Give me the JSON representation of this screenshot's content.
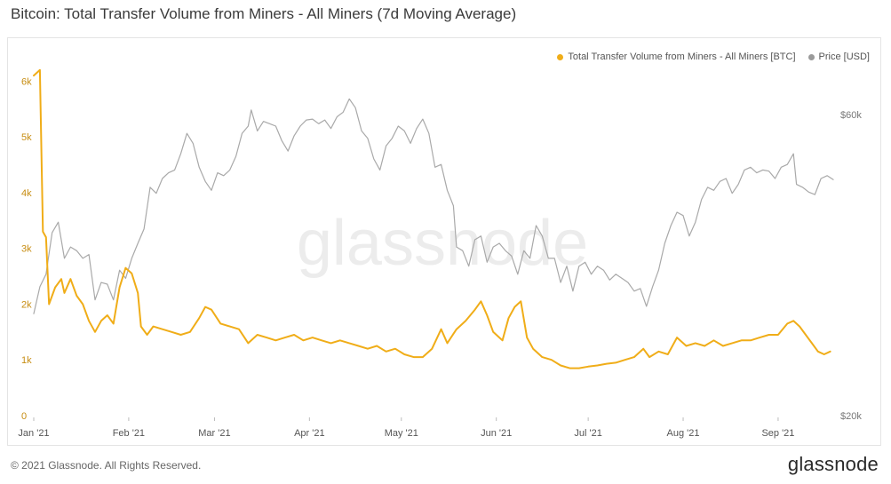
{
  "title": "Bitcoin: Total Transfer Volume from Miners - All Miners (7d Moving Average)",
  "footer": {
    "copyright": "© 2021 Glassnode. All Rights Reserved.",
    "logo": "glassnode"
  },
  "watermark": "glassnode",
  "colors": {
    "volume": "#f0ad18",
    "price": "#a9a9a9",
    "axis_left": "#c78d12",
    "axis_right": "#777777",
    "watermark": "#ececec"
  },
  "chart_data": {
    "type": "line",
    "x_range": [
      "2021-01-01",
      "2021-09-19"
    ],
    "x_ticks": [
      {
        "date": "2021-01-01",
        "label": "Jan '21"
      },
      {
        "date": "2021-02-01",
        "label": "Feb '21"
      },
      {
        "date": "2021-03-01",
        "label": "Mar '21"
      },
      {
        "date": "2021-04-01",
        "label": "Apr '21"
      },
      {
        "date": "2021-05-01",
        "label": "May '21"
      },
      {
        "date": "2021-06-01",
        "label": "Jun '21"
      },
      {
        "date": "2021-07-01",
        "label": "Jul '21"
      },
      {
        "date": "2021-08-01",
        "label": "Aug '21"
      },
      {
        "date": "2021-09-01",
        "label": "Sep '21"
      }
    ],
    "y_left": {
      "range": [
        0,
        6500
      ],
      "ticks": [
        {
          "value": 0,
          "label": "0"
        },
        {
          "value": 1000,
          "label": "1k"
        },
        {
          "value": 2000,
          "label": "2k"
        },
        {
          "value": 3000,
          "label": "3k"
        },
        {
          "value": 4000,
          "label": "4k"
        },
        {
          "value": 5000,
          "label": "5k"
        },
        {
          "value": 6000,
          "label": "6k"
        }
      ]
    },
    "y_right": {
      "scale": "log",
      "range": [
        20000,
        75000
      ],
      "ticks": [
        {
          "value": 20000,
          "label": "$20k"
        },
        {
          "value": 60000,
          "label": "$60k"
        }
      ]
    },
    "legend_position": "top-right",
    "series": [
      {
        "name": "Total Transfer Volume from Miners - All Miners [BTC]",
        "axis": "left",
        "points": [
          [
            "2021-01-01",
            6100
          ],
          [
            "2021-01-02",
            6150
          ],
          [
            "2021-01-03",
            6200
          ],
          [
            "2021-01-04",
            3300
          ],
          [
            "2021-01-05",
            3200
          ],
          [
            "2021-01-06",
            2000
          ],
          [
            "2021-01-08",
            2300
          ],
          [
            "2021-01-10",
            2450
          ],
          [
            "2021-01-11",
            2200
          ],
          [
            "2021-01-13",
            2450
          ],
          [
            "2021-01-15",
            2150
          ],
          [
            "2021-01-17",
            2000
          ],
          [
            "2021-01-19",
            1700
          ],
          [
            "2021-01-21",
            1500
          ],
          [
            "2021-01-23",
            1700
          ],
          [
            "2021-01-25",
            1800
          ],
          [
            "2021-01-27",
            1650
          ],
          [
            "2021-01-29",
            2300
          ],
          [
            "2021-01-31",
            2650
          ],
          [
            "2021-02-02",
            2550
          ],
          [
            "2021-02-04",
            2200
          ],
          [
            "2021-02-05",
            1600
          ],
          [
            "2021-02-07",
            1450
          ],
          [
            "2021-02-09",
            1600
          ],
          [
            "2021-02-12",
            1550
          ],
          [
            "2021-02-15",
            1500
          ],
          [
            "2021-02-18",
            1450
          ],
          [
            "2021-02-21",
            1500
          ],
          [
            "2021-02-24",
            1750
          ],
          [
            "2021-02-26",
            1950
          ],
          [
            "2021-02-28",
            1900
          ],
          [
            "2021-03-03",
            1650
          ],
          [
            "2021-03-06",
            1600
          ],
          [
            "2021-03-09",
            1550
          ],
          [
            "2021-03-12",
            1300
          ],
          [
            "2021-03-15",
            1450
          ],
          [
            "2021-03-18",
            1400
          ],
          [
            "2021-03-21",
            1350
          ],
          [
            "2021-03-24",
            1400
          ],
          [
            "2021-03-27",
            1450
          ],
          [
            "2021-03-30",
            1350
          ],
          [
            "2021-04-02",
            1400
          ],
          [
            "2021-04-05",
            1350
          ],
          [
            "2021-04-08",
            1300
          ],
          [
            "2021-04-11",
            1350
          ],
          [
            "2021-04-14",
            1300
          ],
          [
            "2021-04-17",
            1250
          ],
          [
            "2021-04-20",
            1200
          ],
          [
            "2021-04-23",
            1250
          ],
          [
            "2021-04-26",
            1150
          ],
          [
            "2021-04-29",
            1200
          ],
          [
            "2021-05-02",
            1100
          ],
          [
            "2021-05-05",
            1050
          ],
          [
            "2021-05-08",
            1050
          ],
          [
            "2021-05-11",
            1200
          ],
          [
            "2021-05-14",
            1550
          ],
          [
            "2021-05-16",
            1300
          ],
          [
            "2021-05-19",
            1550
          ],
          [
            "2021-05-22",
            1700
          ],
          [
            "2021-05-25",
            1900
          ],
          [
            "2021-05-27",
            2050
          ],
          [
            "2021-05-29",
            1800
          ],
          [
            "2021-05-31",
            1500
          ],
          [
            "2021-06-03",
            1350
          ],
          [
            "2021-06-05",
            1750
          ],
          [
            "2021-06-07",
            1950
          ],
          [
            "2021-06-09",
            2050
          ],
          [
            "2021-06-11",
            1400
          ],
          [
            "2021-06-13",
            1200
          ],
          [
            "2021-06-16",
            1050
          ],
          [
            "2021-06-19",
            1000
          ],
          [
            "2021-06-22",
            900
          ],
          [
            "2021-06-25",
            850
          ],
          [
            "2021-06-28",
            850
          ],
          [
            "2021-07-01",
            880
          ],
          [
            "2021-07-04",
            900
          ],
          [
            "2021-07-07",
            930
          ],
          [
            "2021-07-10",
            950
          ],
          [
            "2021-07-13",
            1000
          ],
          [
            "2021-07-16",
            1050
          ],
          [
            "2021-07-19",
            1200
          ],
          [
            "2021-07-21",
            1050
          ],
          [
            "2021-07-24",
            1150
          ],
          [
            "2021-07-27",
            1100
          ],
          [
            "2021-07-30",
            1400
          ],
          [
            "2021-08-02",
            1250
          ],
          [
            "2021-08-05",
            1300
          ],
          [
            "2021-08-08",
            1250
          ],
          [
            "2021-08-11",
            1350
          ],
          [
            "2021-08-14",
            1250
          ],
          [
            "2021-08-17",
            1300
          ],
          [
            "2021-08-20",
            1350
          ],
          [
            "2021-08-23",
            1350
          ],
          [
            "2021-08-26",
            1400
          ],
          [
            "2021-08-29",
            1450
          ],
          [
            "2021-09-01",
            1450
          ],
          [
            "2021-09-04",
            1650
          ],
          [
            "2021-09-06",
            1700
          ],
          [
            "2021-09-08",
            1600
          ],
          [
            "2021-09-10",
            1450
          ],
          [
            "2021-09-12",
            1300
          ],
          [
            "2021-09-14",
            1150
          ],
          [
            "2021-09-16",
            1100
          ],
          [
            "2021-09-18",
            1150
          ]
        ]
      },
      {
        "name": "Price [USD]",
        "axis": "right",
        "points": [
          [
            "2021-01-01",
            29000
          ],
          [
            "2021-01-03",
            32000
          ],
          [
            "2021-01-05",
            33500
          ],
          [
            "2021-01-07",
            39000
          ],
          [
            "2021-01-09",
            40500
          ],
          [
            "2021-01-11",
            35500
          ],
          [
            "2021-01-13",
            37000
          ],
          [
            "2021-01-15",
            36500
          ],
          [
            "2021-01-17",
            35500
          ],
          [
            "2021-01-19",
            36000
          ],
          [
            "2021-01-21",
            30500
          ],
          [
            "2021-01-23",
            32500
          ],
          [
            "2021-01-25",
            32300
          ],
          [
            "2021-01-27",
            30500
          ],
          [
            "2021-01-29",
            34000
          ],
          [
            "2021-01-31",
            33000
          ],
          [
            "2021-02-02",
            35500
          ],
          [
            "2021-02-04",
            37500
          ],
          [
            "2021-02-06",
            39500
          ],
          [
            "2021-02-08",
            46000
          ],
          [
            "2021-02-10",
            45000
          ],
          [
            "2021-02-12",
            47500
          ],
          [
            "2021-02-14",
            48500
          ],
          [
            "2021-02-16",
            49000
          ],
          [
            "2021-02-18",
            52000
          ],
          [
            "2021-02-20",
            56000
          ],
          [
            "2021-02-22",
            54000
          ],
          [
            "2021-02-24",
            49500
          ],
          [
            "2021-02-26",
            47000
          ],
          [
            "2021-02-28",
            45500
          ],
          [
            "2021-03-02",
            48500
          ],
          [
            "2021-03-04",
            48000
          ],
          [
            "2021-03-06",
            49000
          ],
          [
            "2021-03-08",
            51500
          ],
          [
            "2021-03-10",
            56000
          ],
          [
            "2021-03-12",
            57500
          ],
          [
            "2021-03-13",
            61000
          ],
          [
            "2021-03-15",
            56500
          ],
          [
            "2021-03-17",
            58500
          ],
          [
            "2021-03-19",
            58000
          ],
          [
            "2021-03-21",
            57500
          ],
          [
            "2021-03-23",
            54500
          ],
          [
            "2021-03-25",
            52500
          ],
          [
            "2021-03-27",
            55500
          ],
          [
            "2021-03-29",
            57500
          ],
          [
            "2021-03-31",
            58800
          ],
          [
            "2021-04-02",
            59000
          ],
          [
            "2021-04-04",
            58000
          ],
          [
            "2021-04-06",
            58800
          ],
          [
            "2021-04-08",
            57000
          ],
          [
            "2021-04-10",
            59500
          ],
          [
            "2021-04-12",
            60500
          ],
          [
            "2021-04-14",
            63500
          ],
          [
            "2021-04-16",
            61500
          ],
          [
            "2021-04-18",
            56500
          ],
          [
            "2021-04-20",
            55000
          ],
          [
            "2021-04-22",
            51000
          ],
          [
            "2021-04-24",
            49000
          ],
          [
            "2021-04-26",
            53500
          ],
          [
            "2021-04-28",
            55000
          ],
          [
            "2021-04-30",
            57500
          ],
          [
            "2021-05-02",
            56500
          ],
          [
            "2021-05-04",
            54000
          ],
          [
            "2021-05-06",
            57000
          ],
          [
            "2021-05-08",
            59000
          ],
          [
            "2021-05-10",
            56000
          ],
          [
            "2021-05-12",
            49500
          ],
          [
            "2021-05-14",
            50000
          ],
          [
            "2021-05-16",
            45500
          ],
          [
            "2021-05-18",
            43000
          ],
          [
            "2021-05-19",
            37000
          ],
          [
            "2021-05-21",
            36500
          ],
          [
            "2021-05-23",
            34500
          ],
          [
            "2021-05-25",
            38000
          ],
          [
            "2021-05-27",
            38500
          ],
          [
            "2021-05-29",
            35000
          ],
          [
            "2021-05-31",
            37000
          ],
          [
            "2021-06-02",
            37500
          ],
          [
            "2021-06-04",
            36500
          ],
          [
            "2021-06-06",
            35800
          ],
          [
            "2021-06-08",
            33500
          ],
          [
            "2021-06-10",
            36500
          ],
          [
            "2021-06-12",
            35500
          ],
          [
            "2021-06-14",
            40000
          ],
          [
            "2021-06-16",
            38500
          ],
          [
            "2021-06-18",
            35500
          ],
          [
            "2021-06-20",
            35500
          ],
          [
            "2021-06-22",
            32500
          ],
          [
            "2021-06-24",
            34500
          ],
          [
            "2021-06-26",
            31500
          ],
          [
            "2021-06-28",
            34500
          ],
          [
            "2021-06-30",
            35000
          ],
          [
            "2021-07-02",
            33500
          ],
          [
            "2021-07-04",
            34500
          ],
          [
            "2021-07-06",
            34000
          ],
          [
            "2021-07-08",
            32800
          ],
          [
            "2021-07-10",
            33500
          ],
          [
            "2021-07-12",
            33000
          ],
          [
            "2021-07-14",
            32500
          ],
          [
            "2021-07-16",
            31500
          ],
          [
            "2021-07-18",
            31800
          ],
          [
            "2021-07-20",
            29800
          ],
          [
            "2021-07-22",
            32000
          ],
          [
            "2021-07-24",
            34000
          ],
          [
            "2021-07-26",
            37500
          ],
          [
            "2021-07-28",
            40000
          ],
          [
            "2021-07-30",
            42000
          ],
          [
            "2021-08-01",
            41500
          ],
          [
            "2021-08-03",
            38500
          ],
          [
            "2021-08-05",
            40500
          ],
          [
            "2021-08-07",
            44000
          ],
          [
            "2021-08-09",
            46000
          ],
          [
            "2021-08-11",
            45500
          ],
          [
            "2021-08-13",
            47000
          ],
          [
            "2021-08-15",
            47500
          ],
          [
            "2021-08-17",
            45000
          ],
          [
            "2021-08-19",
            46500
          ],
          [
            "2021-08-21",
            49000
          ],
          [
            "2021-08-23",
            49500
          ],
          [
            "2021-08-25",
            48500
          ],
          [
            "2021-08-27",
            49000
          ],
          [
            "2021-08-29",
            48800
          ],
          [
            "2021-08-31",
            47500
          ],
          [
            "2021-09-02",
            49500
          ],
          [
            "2021-09-04",
            50000
          ],
          [
            "2021-09-06",
            52000
          ],
          [
            "2021-09-07",
            46500
          ],
          [
            "2021-09-09",
            46000
          ],
          [
            "2021-09-11",
            45200
          ],
          [
            "2021-09-13",
            44800
          ],
          [
            "2021-09-15",
            47500
          ],
          [
            "2021-09-17",
            48000
          ],
          [
            "2021-09-19",
            47300
          ]
        ]
      }
    ]
  }
}
